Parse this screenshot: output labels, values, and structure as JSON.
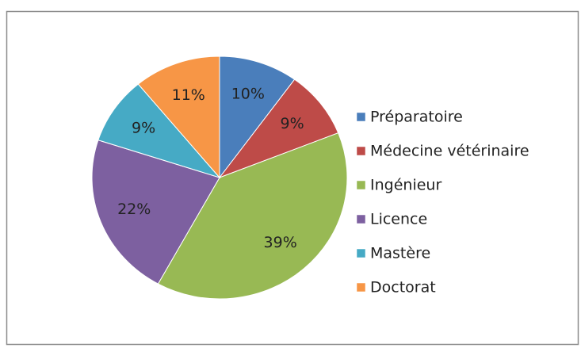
{
  "chart_data": {
    "type": "pie",
    "categories": [
      "Préparatoire",
      "Médecine vétérinaire",
      "Ingénieur",
      "Licence",
      "Mastère",
      "Doctorat"
    ],
    "values": [
      10,
      9,
      39,
      22,
      9,
      11
    ],
    "value_labels": [
      "10%",
      "9%",
      "39%",
      "22%",
      "9%",
      "11%"
    ],
    "colors": [
      "#4a7ebb",
      "#be4b48",
      "#98b954",
      "#7d60a0",
      "#46aac5",
      "#f79646"
    ],
    "legend": "right"
  }
}
